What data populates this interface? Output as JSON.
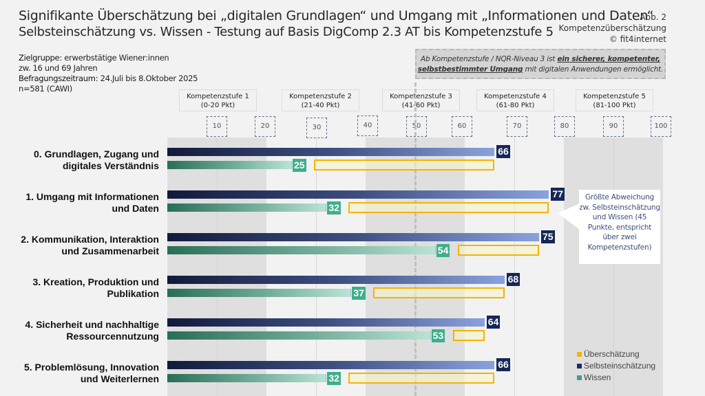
{
  "header": {
    "title": "Signifikante Überschätzung bei „digitalen Grundlagen“ und Umgang mit „Informationen und Daten“",
    "subtitle": "Selbsteinschätzung vs. Wissen - Testung auf Basis DigComp 2.3 AT bis Kompetenzstufe 5",
    "figure_label": "Abb. 2",
    "figure_name": "Kompetenzüberschätzung",
    "copyright": "© fit4internet"
  },
  "meta": {
    "target_label": "Zielgruppe:",
    "target_value": "erwerbstätige Wiener:innen",
    "target_value2": "zw. 16 und 69 Jahren",
    "period_label": "Befragungszeitraum:",
    "period_value": "24.Juli bis 8.Oktober 2025",
    "sample": "n=581 (CAWI)"
  },
  "note": {
    "prefix": "Ab Kompetenzstufe / NQR-Niveau 3 ist ",
    "emphasis1": "ein sicherer, kompetenter,",
    "emphasis2": "selbstbestimmter Umgang",
    "suffix": " mit digitalen Anwendungen ermöglicht."
  },
  "callout": {
    "text": "Größte Abweichung zw. Selbsteinschätzung und Wissen (45 Punkte, entspricht über zwei Kompetenzstufen)"
  },
  "chart_data": {
    "type": "bar",
    "orientation": "horizontal",
    "title": "Signifikante Überschätzung bei „digitalen Grundlagen“ und Umgang mit „Informationen und Daten“",
    "xlim": [
      0,
      100
    ],
    "xticks": [
      "10",
      "20",
      "30",
      "40",
      "50",
      "60",
      "70",
      "80",
      "90",
      "100"
    ],
    "reference_line": 50,
    "stages": [
      {
        "name": "Kompetenzstufe 1",
        "range": "(0-20 Pkt)",
        "from": 0,
        "to": 20,
        "shaded": true
      },
      {
        "name": "Kompetenzstufe 2",
        "range": "(21-40 Pkt)",
        "from": 20,
        "to": 40,
        "shaded": false
      },
      {
        "name": "Kompetenzstufe 3",
        "range": "(41-60 Pkt)",
        "from": 40,
        "to": 60,
        "shaded": true
      },
      {
        "name": "Kompetenzstufe 4",
        "range": "(61-80 Pkt)",
        "from": 60,
        "to": 80,
        "shaded": false
      },
      {
        "name": "Kompetenzstufe 5",
        "range": "(81-100 Pkt)",
        "from": 80,
        "to": 100,
        "shaded": true
      }
    ],
    "categories": [
      "0. Grundlagen, Zugang und digitales Verständnis",
      "1. Umgang mit Informationen und Daten",
      "2. Kommunikation, Interaktion und Zusammenarbeit",
      "3. Kreation, Produktion und Publikation",
      "4. Sicherheit und nachhaltige Ressourcennutzung",
      "5. Problemlösung, Innovation und Weiterlernen"
    ],
    "category_lines": [
      [
        "0. Grundlagen, Zugang und",
        "digitales Verständnis"
      ],
      [
        "1. Umgang mit Informationen",
        "und Daten"
      ],
      [
        "2. Kommunikation, Interaktion",
        "und Zusammenarbeit"
      ],
      [
        "3. Kreation, Produktion und",
        "Publikation"
      ],
      [
        "4. Sicherheit und nachhaltige",
        "Ressourcennutzung"
      ],
      [
        "5. Problemlösung, Innovation",
        "und Weiterlernen"
      ]
    ],
    "series": [
      {
        "name": "Selbsteinschätzung",
        "color": "#162755",
        "values": [
          66,
          77,
          75,
          68,
          64,
          66
        ]
      },
      {
        "name": "Wissen",
        "color": "#3fae8c",
        "values": [
          25,
          32,
          54,
          37,
          53,
          32
        ]
      },
      {
        "name": "Überschätzung",
        "color": "#f2b400",
        "values": [
          41,
          45,
          21,
          31,
          11,
          34
        ]
      }
    ],
    "legend": [
      "Überschätzung",
      "Selbsteinschätzung",
      "Wissen"
    ],
    "legend_position": "bottom-right"
  }
}
